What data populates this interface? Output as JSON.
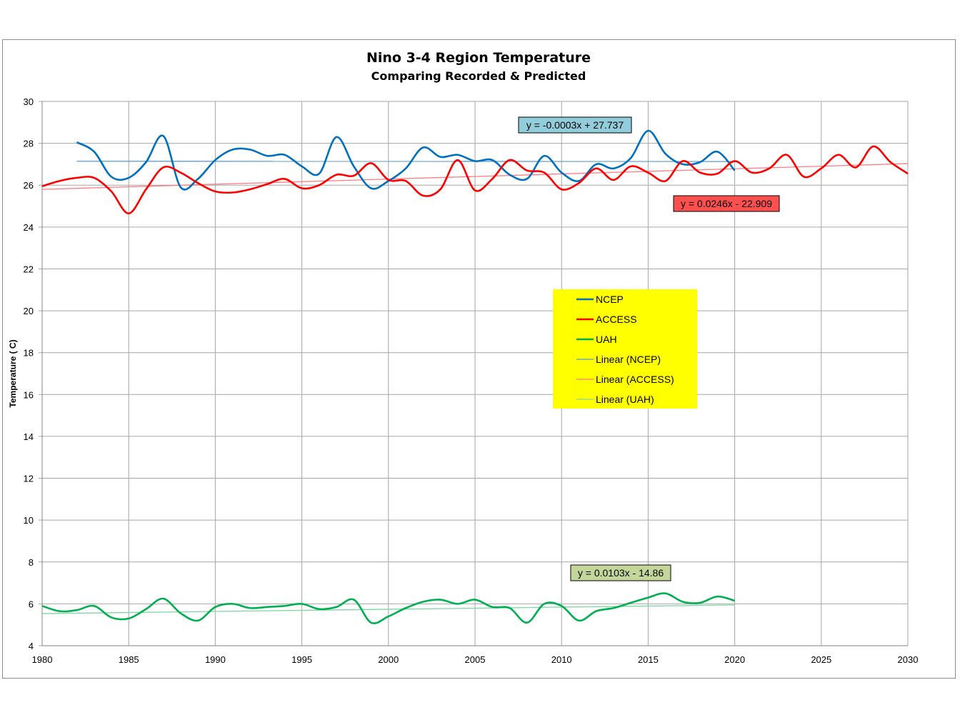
{
  "chart_data": {
    "type": "line",
    "title": "Nino 3-4 Region Temperature",
    "subtitle": "Comparing Recorded & Predicted",
    "xlabel": "",
    "ylabel": "Temperature ( C)",
    "xlim": [
      1980,
      2030
    ],
    "ylim": [
      4,
      30
    ],
    "xticks": [
      1980,
      1985,
      1990,
      1995,
      2000,
      2005,
      2010,
      2015,
      2020,
      2025,
      2030
    ],
    "yticks": [
      4,
      6,
      8,
      10,
      12,
      14,
      16,
      18,
      20,
      22,
      24,
      26,
      28,
      30
    ],
    "grid": true,
    "legend_position": "center-right",
    "series": [
      {
        "name": "NCEP",
        "color": "#0070c0",
        "x_start": 1982,
        "values": [
          28.05,
          27.6,
          26.4,
          26.35,
          27.1,
          28.35,
          25.9,
          26.3,
          27.2,
          27.7,
          27.7,
          27.4,
          27.45,
          26.9,
          26.55,
          28.3,
          26.9,
          25.85,
          26.2,
          26.8,
          27.8,
          27.35,
          27.45,
          27.15,
          27.2,
          26.5,
          26.3,
          27.4,
          26.6,
          26.2,
          27.0,
          26.8,
          27.3,
          28.6,
          27.5,
          27.0,
          27.1,
          27.6,
          26.7
        ]
      },
      {
        "name": "ACCESS",
        "color": "#ff0000",
        "x_start": 1980,
        "values": [
          25.95,
          26.2,
          26.35,
          26.35,
          25.7,
          24.65,
          25.8,
          26.85,
          26.6,
          26.1,
          25.7,
          25.65,
          25.8,
          26.05,
          26.3,
          25.85,
          26.0,
          26.5,
          26.45,
          27.05,
          26.25,
          26.2,
          25.5,
          25.8,
          27.2,
          25.75,
          26.3,
          27.2,
          26.7,
          26.6,
          25.8,
          26.1,
          26.8,
          26.25,
          26.9,
          26.6,
          26.2,
          27.15,
          26.6,
          26.55,
          27.15,
          26.6,
          26.8,
          27.45,
          26.4,
          26.8,
          27.45,
          26.85,
          27.85,
          27.1,
          26.55
        ]
      },
      {
        "name": "UAH",
        "color": "#00b050",
        "x_start": 1980,
        "values": [
          5.9,
          5.65,
          5.7,
          5.9,
          5.35,
          5.3,
          5.75,
          6.25,
          5.55,
          5.2,
          5.85,
          6.0,
          5.8,
          5.85,
          5.9,
          6.0,
          5.75,
          5.85,
          6.2,
          5.1,
          5.4,
          5.8,
          6.1,
          6.2,
          6.0,
          6.2,
          5.85,
          5.8,
          5.1,
          6.0,
          5.9,
          5.2,
          5.65,
          5.8,
          6.05,
          6.3,
          6.5,
          6.1,
          6.05,
          6.35,
          6.15
        ]
      }
    ],
    "trendlines": [
      {
        "name": "Linear (NCEP)",
        "series": "NCEP",
        "slope": -0.0003,
        "intercept": 27.737,
        "x_range": [
          1982,
          2020
        ],
        "color": "#5b9bd5",
        "equation": "y = -0.0003x + 27.737",
        "label_bg": "#92cddc"
      },
      {
        "name": "Linear (ACCESS)",
        "series": "ACCESS",
        "slope": 0.0246,
        "intercept": -22.909,
        "x_range": [
          1980,
          2030
        ],
        "color": "#ff7c80",
        "equation": "y = 0.0246x - 22.909",
        "label_bg": "#ff5050"
      },
      {
        "name": "Linear (UAH)",
        "series": "UAH",
        "slope": 0.0103,
        "intercept": -14.86,
        "x_range": [
          1980,
          2020
        ],
        "color": "#7fd6a0",
        "equation": "y = 0.0103x - 14.86",
        "label_bg": "#c4d79b"
      }
    ],
    "legend": [
      "NCEP",
      "ACCESS",
      "UAH",
      "Linear (NCEP)",
      "Linear (ACCESS)",
      "Linear (UAH)"
    ],
    "legend_bg": "#ffff00"
  }
}
